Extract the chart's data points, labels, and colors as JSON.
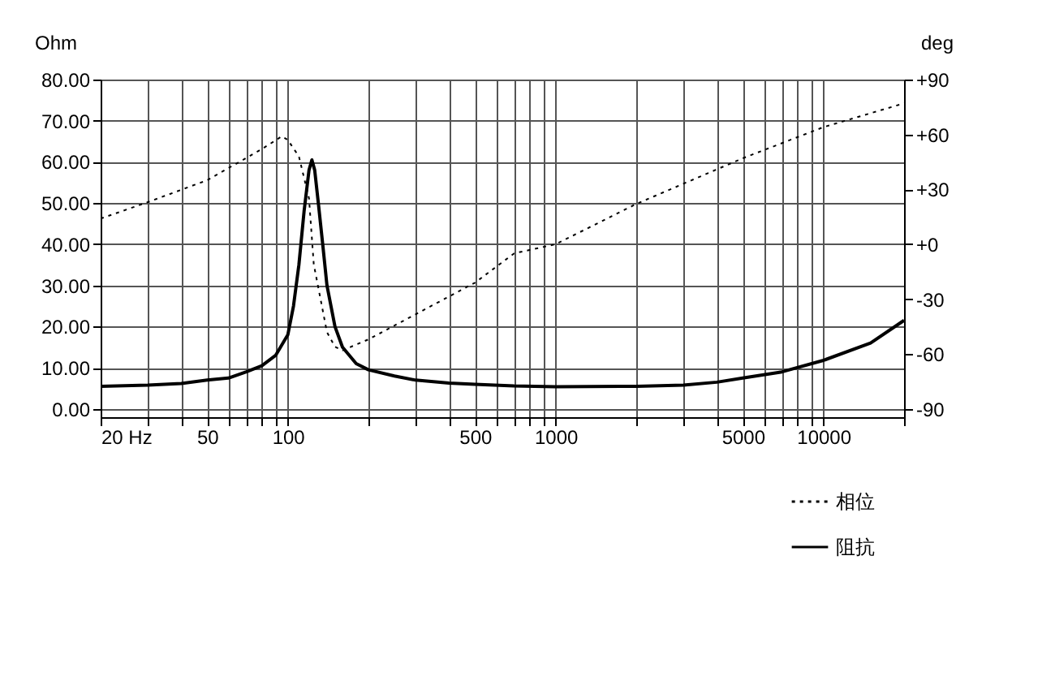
{
  "chart_data": {
    "type": "line",
    "ylabel": "Ohm",
    "y2label": "deg",
    "log": "x",
    "grid": true,
    "legend": "bottom right",
    "marker": "none",
    "xlim": [
      20,
      20000
    ],
    "ylim": [
      -2,
      80
    ],
    "y2lim": [
      -94.5,
      90
    ],
    "xticks": [
      {
        "value": 20,
        "label": "20 Hz"
      },
      {
        "value": 30,
        "label": null
      },
      {
        "value": 40,
        "label": null
      },
      50,
      {
        "value": 60,
        "label": null
      },
      {
        "value": 70,
        "label": null
      },
      {
        "value": 80,
        "label": null
      },
      {
        "value": 90,
        "label": null
      },
      100,
      {
        "value": 200,
        "label": null
      },
      {
        "value": 300,
        "label": null
      },
      {
        "value": 400,
        "label": null
      },
      500,
      {
        "value": 600,
        "label": null
      },
      {
        "value": 700,
        "label": null
      },
      {
        "value": 800,
        "label": null
      },
      {
        "value": 900,
        "label": null
      },
      1000,
      {
        "value": 2000,
        "label": null
      },
      {
        "value": 3000,
        "label": null
      },
      {
        "value": 4000,
        "label": null
      },
      5000,
      {
        "value": 6000,
        "label": null
      },
      {
        "value": 7000,
        "label": null
      },
      {
        "value": 8000,
        "label": null
      },
      {
        "value": 9000,
        "label": null
      },
      10000,
      {
        "value": 20000,
        "label": null
      }
    ],
    "yticks": [
      {
        "value": 0,
        "label": "0.00"
      },
      {
        "value": 10,
        "label": "10.00"
      },
      {
        "value": 20,
        "label": "20.00"
      },
      {
        "value": 30,
        "label": "30.00"
      },
      {
        "value": 40,
        "label": "40.00"
      },
      {
        "value": 50,
        "label": "50.00"
      },
      {
        "value": 60,
        "label": "60.00"
      },
      {
        "value": 70,
        "label": "70.00"
      },
      {
        "value": 80,
        "label": "80.00"
      }
    ],
    "y2ticks": [
      {
        "value": -90,
        "label": "-90"
      },
      {
        "value": -60,
        "label": "-60"
      },
      {
        "value": -30,
        "label": "-30"
      },
      {
        "value": 0,
        "label": "+0"
      },
      {
        "value": 30,
        "label": "+30"
      },
      {
        "value": 60,
        "label": "+60"
      },
      {
        "value": 90,
        "label": "+90"
      }
    ],
    "series": [
      {
        "name": "相位",
        "color": "#000000",
        "axis": "y2",
        "line_style": "dotted",
        "x": [
          20,
          30,
          50,
          80,
          95,
          100,
          110,
          120,
          125,
          140,
          150,
          160,
          200,
          500,
          700,
          1000,
          2000,
          5000,
          10000,
          20000
        ],
        "values": [
          14,
          23,
          35,
          52,
          59,
          57,
          48,
          25,
          -11,
          -48,
          -56,
          -58,
          -52,
          -21,
          -5,
          0,
          22,
          47,
          64,
          77
        ]
      },
      {
        "name": "阻抗",
        "color": "#000000",
        "line_style": "solid",
        "x": [
          20,
          30,
          40,
          50,
          60,
          70,
          80,
          90,
          100,
          105,
          110,
          115,
          120,
          123,
          126,
          130,
          135,
          140,
          150,
          160,
          180,
          200,
          250,
          300,
          400,
          500,
          700,
          1000,
          2000,
          3000,
          4000,
          5000,
          7000,
          10000,
          15000,
          20000
        ],
        "values": [
          5.5,
          5.8,
          6.2,
          7,
          7.5,
          9,
          10.5,
          13,
          18,
          25,
          35,
          48,
          58,
          60.5,
          58,
          50,
          40,
          30,
          20,
          15,
          11,
          9.5,
          8,
          7,
          6.3,
          6,
          5.6,
          5.4,
          5.5,
          5.8,
          6.5,
          7.5,
          9,
          11.8,
          16,
          21.5
        ]
      }
    ]
  }
}
